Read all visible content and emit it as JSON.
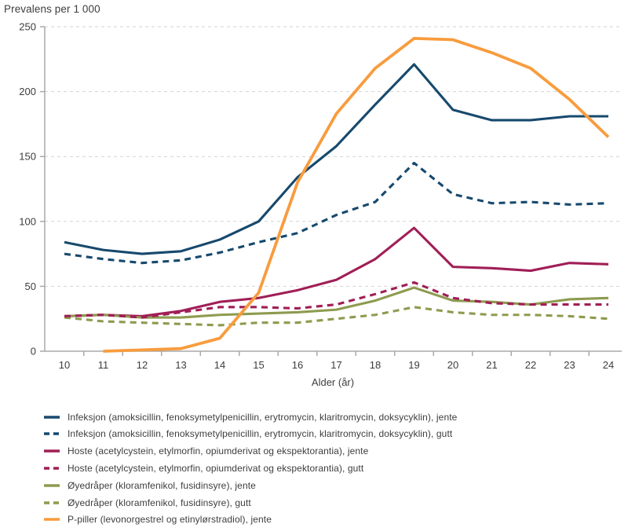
{
  "title": "Prevalens per 1 000",
  "chart_data": {
    "type": "line",
    "title": "Prevalens per 1 000",
    "xlabel": "Alder (år)",
    "ylabel": "Prevalens per 1 000",
    "x": [
      10,
      11,
      12,
      13,
      14,
      15,
      16,
      17,
      18,
      19,
      20,
      21,
      22,
      23,
      24
    ],
    "ylim": [
      0,
      250
    ],
    "y_ticks": [
      0,
      50,
      100,
      150,
      200,
      250
    ],
    "grid": "horizontal-dashed",
    "legend_position": "bottom-left",
    "axis_color": "#a9a9a9",
    "gridline_color": "#d2d2d2",
    "series": [
      {
        "key": "infeksjon-jente",
        "name": "Infeksjon (amoksicillin, fenoksymetylpenicillin, erytromycin, klaritromycin, doksycyklin), jente",
        "color": "#17496d",
        "style": "solid",
        "values": [
          84,
          78,
          75,
          77,
          86,
          100,
          134,
          158,
          190,
          221,
          186,
          178,
          178,
          181,
          181
        ]
      },
      {
        "key": "infeksjon-gutt",
        "name": "Infeksjon (amoksicillin, fenoksymetylpenicillin, erytromycin, klaritromycin, doksycyklin), gutt",
        "color": "#17496d",
        "style": "dashed",
        "values": [
          75,
          71,
          68,
          70,
          76,
          84,
          91,
          105,
          115,
          145,
          121,
          114,
          115,
          113,
          114
        ]
      },
      {
        "key": "hoste-jente",
        "name": "Hoste (acetylcystein, etylmorfin, opiumderivat og ekspektorantia), jente",
        "color": "#a01e56",
        "style": "solid",
        "values": [
          27,
          28,
          27,
          31,
          38,
          41,
          47,
          55,
          71,
          95,
          65,
          64,
          62,
          68,
          67
        ]
      },
      {
        "key": "hoste-gutt",
        "name": "Hoste (acetylcystein, etylmorfin, opiumderivat og ekspektorantia), gutt",
        "color": "#a01e56",
        "style": "dashed",
        "values": [
          27,
          28,
          26,
          30,
          34,
          34,
          33,
          36,
          44,
          53,
          41,
          37,
          36,
          36,
          36
        ]
      },
      {
        "key": "oyedraper-jente",
        "name": "Øyedråper (kloramfenikol, fusidinsyre), jente",
        "color": "#8d9b4f",
        "style": "solid",
        "values": [
          27,
          28,
          26,
          26,
          28,
          29,
          30,
          32,
          39,
          49,
          39,
          38,
          36,
          40,
          41
        ]
      },
      {
        "key": "oyedraper-gutt",
        "name": "Øyedråper (kloramfenikol, fusidinsyre), gutt",
        "color": "#8d9b4f",
        "style": "dashed",
        "values": [
          26,
          23,
          22,
          21,
          20,
          22,
          22,
          25,
          28,
          34,
          30,
          28,
          28,
          27,
          25
        ]
      },
      {
        "key": "p-piller-jente",
        "name": "P-piller (levonorgestrel og etinylørstradiol), jente",
        "color": "#f89c3d",
        "style": "solid",
        "values": [
          null,
          0,
          1,
          2,
          10,
          45,
          130,
          183,
          218,
          241,
          240,
          230,
          218,
          194,
          165
        ]
      }
    ]
  }
}
